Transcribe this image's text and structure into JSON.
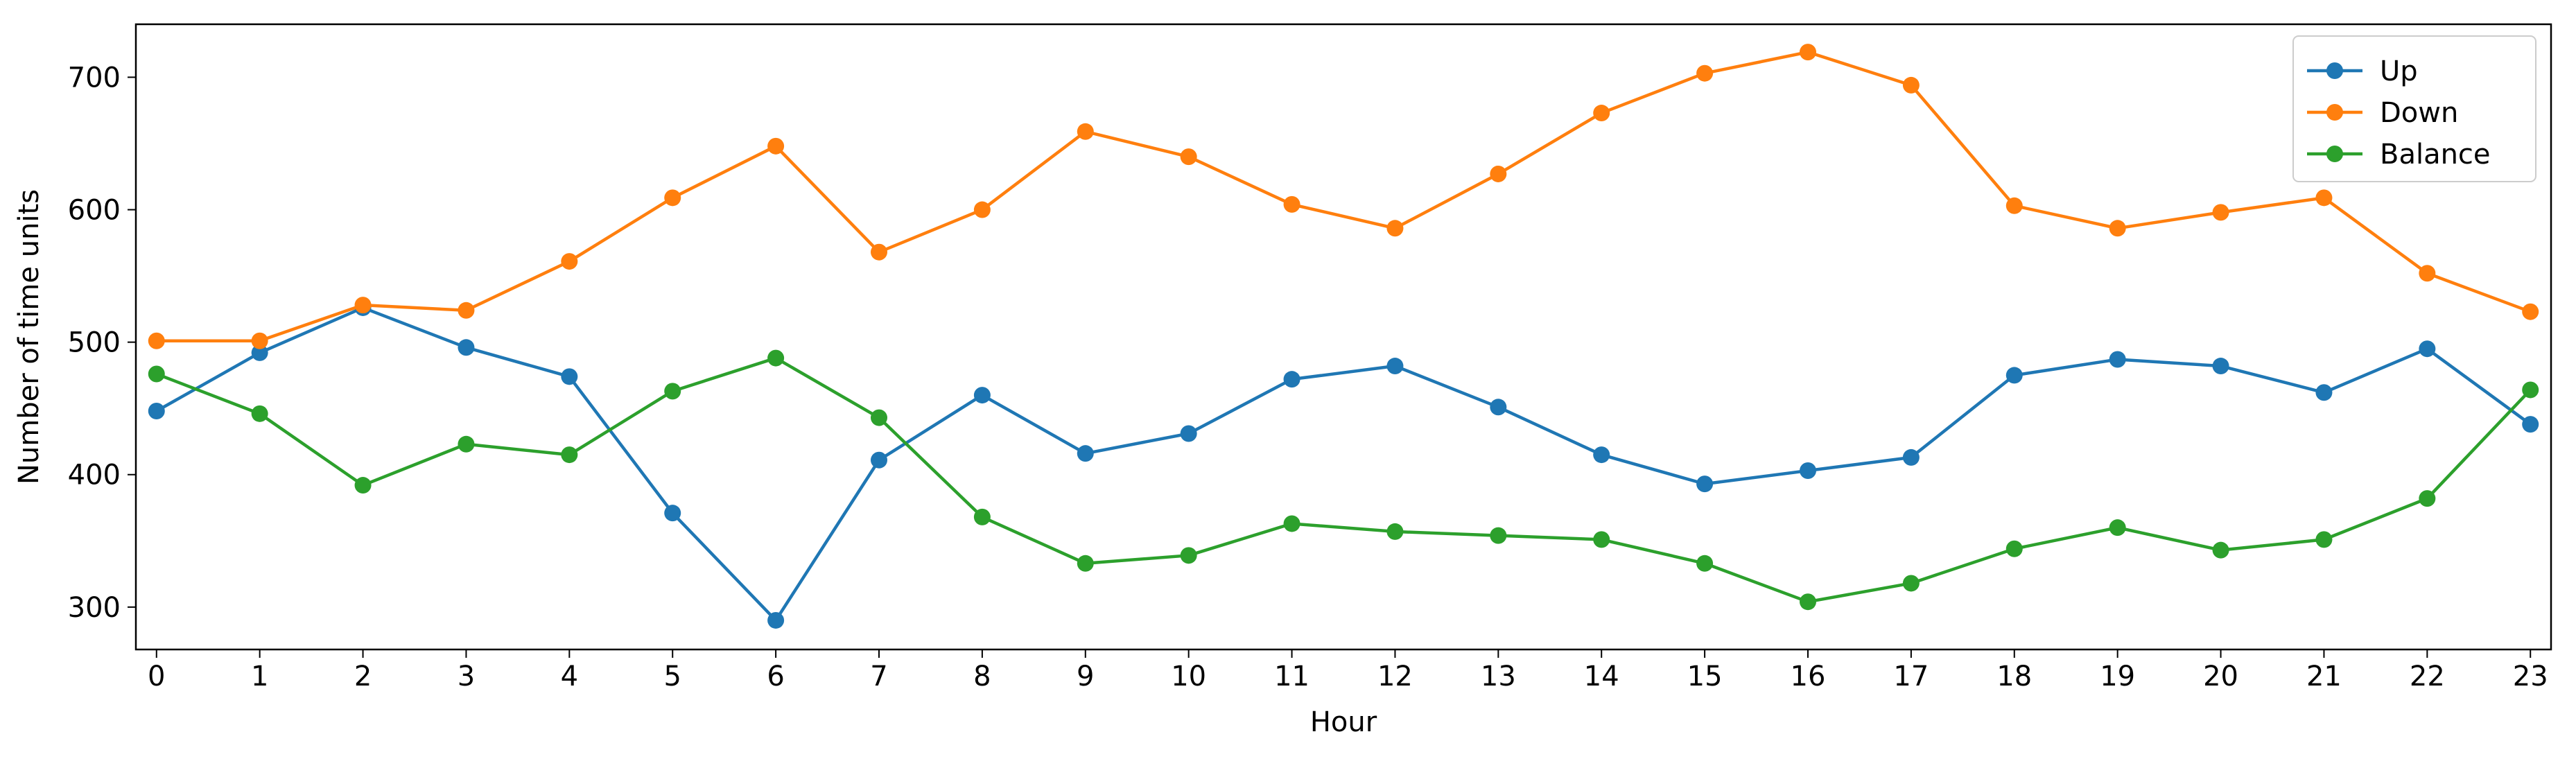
{
  "chart_data": {
    "type": "line",
    "title": "",
    "xlabel": "Hour",
    "ylabel": "Number of time units",
    "categories": [
      "0",
      "1",
      "2",
      "3",
      "4",
      "5",
      "6",
      "7",
      "8",
      "9",
      "10",
      "11",
      "12",
      "13",
      "14",
      "15",
      "16",
      "17",
      "18",
      "19",
      "20",
      "21",
      "22",
      "23"
    ],
    "x": [
      0,
      1,
      2,
      3,
      4,
      5,
      6,
      7,
      8,
      9,
      10,
      11,
      12,
      13,
      14,
      15,
      16,
      17,
      18,
      19,
      20,
      21,
      22,
      23
    ],
    "xlim": [
      -0.2,
      23.2
    ],
    "ylim": [
      268,
      740
    ],
    "yticks": [
      300,
      400,
      500,
      600,
      700
    ],
    "grid": false,
    "legend": {
      "position": "top-right"
    },
    "series": [
      {
        "name": "Up",
        "color": "#1f77b4",
        "marker": "circle",
        "values": [
          448,
          492,
          526,
          496,
          474,
          371,
          290,
          411,
          460,
          416,
          431,
          472,
          482,
          451,
          415,
          393,
          403,
          413,
          475,
          487,
          482,
          462,
          495,
          438
        ]
      },
      {
        "name": "Down",
        "color": "#ff7f0e",
        "marker": "circle",
        "values": [
          501,
          501,
          528,
          524,
          561,
          609,
          648,
          568,
          600,
          659,
          640,
          604,
          586,
          627,
          673,
          703,
          719,
          694,
          603,
          586,
          598,
          609,
          552,
          523
        ]
      },
      {
        "name": "Balance",
        "color": "#2ca02c",
        "marker": "circle",
        "values": [
          476,
          446,
          392,
          423,
          415,
          463,
          488,
          443,
          368,
          333,
          339,
          363,
          357,
          354,
          351,
          333,
          304,
          318,
          344,
          360,
          343,
          351,
          382,
          464
        ]
      }
    ]
  }
}
